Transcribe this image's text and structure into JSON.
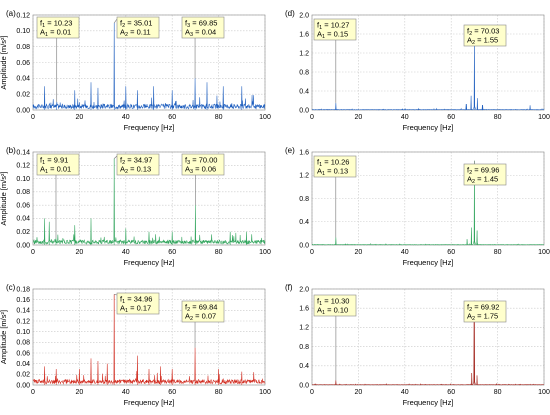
{
  "figure": {
    "panels": [
      {
        "label": "(a)",
        "color": "#1f5fbf",
        "xlabel": "Frequency [Hz]",
        "ylabel": "Amplitude [m/s²]",
        "xlim": [
          0,
          100
        ],
        "xticks": [
          0,
          20,
          40,
          60,
          80,
          100
        ],
        "ylim": [
          0,
          0.12
        ],
        "yticks": [
          "0.00",
          "0.02",
          "0.04",
          "0.06",
          "0.08",
          "0.10",
          "0.12"
        ],
        "noise": 0.005,
        "peaks": [
          {
            "x": 10.23,
            "y": 0.01
          },
          {
            "x": 35.01,
            "y": 0.11
          },
          {
            "x": 69.85,
            "y": 0.04
          },
          {
            "x": 5,
            "y": 0.03
          },
          {
            "x": 18,
            "y": 0.025
          },
          {
            "x": 25,
            "y": 0.035
          },
          {
            "x": 28,
            "y": 0.028
          },
          {
            "x": 40,
            "y": 0.03
          },
          {
            "x": 45,
            "y": 0.025
          },
          {
            "x": 52,
            "y": 0.03
          },
          {
            "x": 60,
            "y": 0.025
          },
          {
            "x": 75,
            "y": 0.035
          },
          {
            "x": 82,
            "y": 0.03
          },
          {
            "x": 90,
            "y": 0.03
          }
        ],
        "annotations": [
          {
            "f": "10.23",
            "a": "0.01",
            "i": "1",
            "peak": 0
          },
          {
            "f": "35.01",
            "a": "0.11",
            "i": "2",
            "peak": 1
          },
          {
            "f": "69.85",
            "a": "0.04",
            "i": "3",
            "peak": 2
          }
        ]
      },
      {
        "label": "(d)",
        "color": "#1f5fbf",
        "xlabel": "Frequency [Hz]",
        "ylabel": "",
        "xlim": [
          0,
          100
        ],
        "xticks": [
          0,
          20,
          40,
          60,
          80,
          100
        ],
        "ylim": [
          0,
          2.0
        ],
        "yticks": [
          "0.0",
          "0.4",
          "0.8",
          "1.2",
          "1.6",
          "2.0"
        ],
        "noise": 0.008,
        "peaks": [
          {
            "x": 10.27,
            "y": 0.15
          },
          {
            "x": 70.03,
            "y": 1.55
          },
          {
            "x": 68.6,
            "y": 0.3
          },
          {
            "x": 71.3,
            "y": 0.25
          },
          {
            "x": 66.5,
            "y": 0.12
          },
          {
            "x": 73.5,
            "y": 0.1
          },
          {
            "x": 94,
            "y": 0.1
          }
        ],
        "annotations": [
          {
            "f": "10.27",
            "a": "0.15",
            "i": "1",
            "peak": 0
          },
          {
            "f": "70.03",
            "a": "1.55",
            "i": "2",
            "peak": 1
          }
        ]
      },
      {
        "label": "(b)",
        "color": "#2ea35a",
        "xlabel": "Frequency [Hz]",
        "ylabel": "Amplitude [m/s²]",
        "xlim": [
          0,
          100
        ],
        "xticks": [
          0,
          20,
          40,
          60,
          80,
          100
        ],
        "ylim": [
          0,
          0.14
        ],
        "yticks": [
          "0.00",
          "0.02",
          "0.04",
          "0.06",
          "0.08",
          "0.10",
          "0.12",
          "0.14"
        ],
        "noise": 0.005,
        "peaks": [
          {
            "x": 9.91,
            "y": 0.01
          },
          {
            "x": 34.97,
            "y": 0.13
          },
          {
            "x": 70.0,
            "y": 0.06
          },
          {
            "x": 5,
            "y": 0.04
          },
          {
            "x": 7,
            "y": 0.035
          },
          {
            "x": 18,
            "y": 0.03
          },
          {
            "x": 25,
            "y": 0.04
          },
          {
            "x": 40,
            "y": 0.025
          },
          {
            "x": 50,
            "y": 0.02
          },
          {
            "x": 60,
            "y": 0.02
          },
          {
            "x": 85,
            "y": 0.02
          },
          {
            "x": 92,
            "y": 0.02
          }
        ],
        "annotations": [
          {
            "f": "9.91",
            "a": "0.01",
            "i": "1",
            "peak": 0
          },
          {
            "f": "34.97",
            "a": "0.13",
            "i": "2",
            "peak": 1
          },
          {
            "f": "70.00",
            "a": "0.06",
            "i": "3",
            "peak": 2
          }
        ]
      },
      {
        "label": "(e)",
        "color": "#2ea35a",
        "xlabel": "Frequency [Hz]",
        "ylabel": "",
        "xlim": [
          0,
          100
        ],
        "xticks": [
          0,
          20,
          40,
          60,
          80,
          100
        ],
        "ylim": [
          0,
          1.6
        ],
        "yticks": [
          "0.0",
          "0.4",
          "0.8",
          "1.2",
          "1.6"
        ],
        "noise": 0.006,
        "peaks": [
          {
            "x": 10.26,
            "y": 0.13
          },
          {
            "x": 69.96,
            "y": 1.45
          },
          {
            "x": 68.7,
            "y": 0.3
          },
          {
            "x": 71.2,
            "y": 0.25
          },
          {
            "x": 66.8,
            "y": 0.1
          }
        ],
        "annotations": [
          {
            "f": "10.26",
            "a": "0.13",
            "i": "1",
            "peak": 0
          },
          {
            "f": "69.96",
            "a": "1.45",
            "i": "2",
            "peak": 1
          }
        ]
      },
      {
        "label": "(c)",
        "color": "#d12b1f",
        "xlabel": "Frequency [Hz]",
        "ylabel": "Amplitude [m/s²]",
        "xlim": [
          0,
          100
        ],
        "xticks": [
          0,
          20,
          40,
          60,
          80,
          100
        ],
        "ylim": [
          0,
          0.18
        ],
        "yticks": [
          "0.00",
          "0.02",
          "0.04",
          "0.06",
          "0.08",
          "0.10",
          "0.12",
          "0.14",
          "0.16",
          "0.18"
        ],
        "noise": 0.007,
        "peaks": [
          {
            "x": 34.96,
            "y": 0.17
          },
          {
            "x": 69.84,
            "y": 0.07
          },
          {
            "x": 5,
            "y": 0.035
          },
          {
            "x": 10,
            "y": 0.03
          },
          {
            "x": 20,
            "y": 0.03
          },
          {
            "x": 25,
            "y": 0.05
          },
          {
            "x": 28,
            "y": 0.045
          },
          {
            "x": 32,
            "y": 0.04
          },
          {
            "x": 45,
            "y": 0.055
          },
          {
            "x": 50,
            "y": 0.03
          },
          {
            "x": 55,
            "y": 0.035
          },
          {
            "x": 60,
            "y": 0.03
          },
          {
            "x": 80,
            "y": 0.03
          },
          {
            "x": 90,
            "y": 0.025
          }
        ],
        "annotations": [
          {
            "f": "34.96",
            "a": "0.17",
            "i": "1",
            "peak": 0
          },
          {
            "f": "69.84",
            "a": "0.07",
            "i": "2",
            "peak": 1
          }
        ]
      },
      {
        "label": "(f)",
        "color": "#a32820",
        "xlabel": "Frequency [Hz]",
        "ylabel": "",
        "xlim": [
          0,
          100
        ],
        "xticks": [
          0,
          20,
          40,
          60,
          80,
          100
        ],
        "ylim": [
          0,
          2.0
        ],
        "yticks": [
          "0.0",
          "0.4",
          "0.8",
          "1.2",
          "1.6",
          "2.0"
        ],
        "noise": 0.007,
        "peaks": [
          {
            "x": 10.3,
            "y": 0.1
          },
          {
            "x": 69.92,
            "y": 1.75
          },
          {
            "x": 68.8,
            "y": 0.25
          },
          {
            "x": 71.1,
            "y": 0.2
          }
        ],
        "annotations": [
          {
            "f": "10.30",
            "a": "0.10",
            "i": "1",
            "peak": 0
          },
          {
            "f": "69.92",
            "a": "1.75",
            "i": "2",
            "peak": 1
          }
        ]
      }
    ]
  },
  "chart_data": [
    {
      "type": "line",
      "label": "(a)",
      "xlabel": "Frequency [Hz]",
      "ylabel": "Amplitude [m/s²]",
      "xlim": [
        0,
        100
      ],
      "ylim": [
        0,
        0.12
      ],
      "series": [
        {
          "values": [
            {
              "x": 10.23,
              "y": 0.01
            },
            {
              "x": 35.01,
              "y": 0.11
            },
            {
              "x": 69.85,
              "y": 0.04
            }
          ]
        }
      ]
    },
    {
      "type": "line",
      "label": "(d)",
      "xlabel": "Frequency [Hz]",
      "xlim": [
        0,
        100
      ],
      "ylim": [
        0,
        2.0
      ],
      "series": [
        {
          "values": [
            {
              "x": 10.27,
              "y": 0.15
            },
            {
              "x": 70.03,
              "y": 1.55
            }
          ]
        }
      ]
    },
    {
      "type": "line",
      "label": "(b)",
      "xlabel": "Frequency [Hz]",
      "ylabel": "Amplitude [m/s²]",
      "xlim": [
        0,
        100
      ],
      "ylim": [
        0,
        0.14
      ],
      "series": [
        {
          "values": [
            {
              "x": 9.91,
              "y": 0.01
            },
            {
              "x": 34.97,
              "y": 0.13
            },
            {
              "x": 70.0,
              "y": 0.06
            }
          ]
        }
      ]
    },
    {
      "type": "line",
      "label": "(e)",
      "xlabel": "Frequency [Hz]",
      "xlim": [
        0,
        100
      ],
      "ylim": [
        0,
        1.6
      ],
      "series": [
        {
          "values": [
            {
              "x": 10.26,
              "y": 0.13
            },
            {
              "x": 69.96,
              "y": 1.45
            }
          ]
        }
      ]
    },
    {
      "type": "line",
      "label": "(c)",
      "xlabel": "Frequency [Hz]",
      "ylabel": "Amplitude [m/s²]",
      "xlim": [
        0,
        100
      ],
      "ylim": [
        0,
        0.18
      ],
      "series": [
        {
          "values": [
            {
              "x": 34.96,
              "y": 0.17
            },
            {
              "x": 69.84,
              "y": 0.07
            }
          ]
        }
      ]
    },
    {
      "type": "line",
      "label": "(f)",
      "xlabel": "Frequency [Hz]",
      "xlim": [
        0,
        100
      ],
      "ylim": [
        0,
        2.0
      ],
      "series": [
        {
          "values": [
            {
              "x": 10.3,
              "y": 0.1
            },
            {
              "x": 69.92,
              "y": 1.75
            }
          ]
        }
      ]
    }
  ]
}
